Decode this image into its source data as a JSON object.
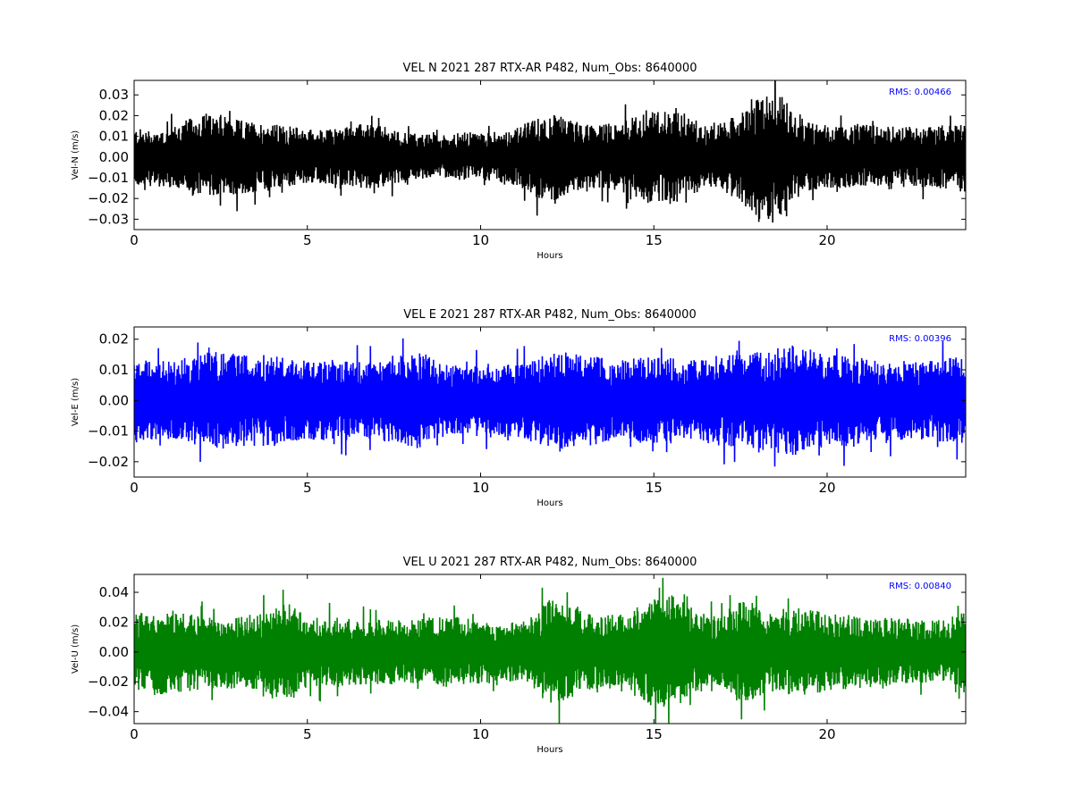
{
  "chart_data": [
    {
      "type": "line",
      "title": "VEL N 2021 287 RTX-AR  P482, Num_Obs: 8640000",
      "xlabel": "Hours",
      "ylabel": "Vel-N (m/s)",
      "xlim": [
        0,
        24
      ],
      "ylim": [
        -0.035,
        0.037
      ],
      "xticks": [
        0,
        5,
        10,
        15,
        20
      ],
      "xtick_labels": [
        "0",
        "5",
        "10",
        "15",
        "20"
      ],
      "yticks": [
        -0.03,
        -0.02,
        -0.01,
        0.0,
        0.01,
        0.02,
        0.03
      ],
      "ytick_labels": [
        "−0.03",
        "−0.02",
        "−0.01",
        "0.00",
        "0.01",
        "0.02",
        "0.03"
      ],
      "annotation": "RMS:  0.00466",
      "color": "#000000",
      "annotation_color": "#0000ff",
      "grid": false,
      "series": [
        {
          "x": [
            0,
            0.5,
            1,
            1.5,
            2,
            2.5,
            3,
            3.5,
            4,
            4.5,
            5,
            5.5,
            6,
            6.5,
            7,
            7.5,
            8,
            8.5,
            9,
            9.5,
            10,
            10.5,
            11,
            11.5,
            12,
            12.5,
            13,
            13.5,
            14,
            14.5,
            15,
            15.5,
            16,
            16.5,
            17,
            17.5,
            18,
            18.5,
            19,
            19.5,
            20,
            20.5,
            21,
            21.5,
            22,
            22.5,
            23,
            23.5,
            24
          ],
          "upper": [
            0.014,
            0.013,
            0.014,
            0.018,
            0.021,
            0.019,
            0.018,
            0.017,
            0.016,
            0.015,
            0.014,
            0.013,
            0.015,
            0.016,
            0.016,
            0.013,
            0.012,
            0.011,
            0.011,
            0.012,
            0.012,
            0.012,
            0.014,
            0.018,
            0.021,
            0.019,
            0.016,
            0.016,
            0.017,
            0.02,
            0.022,
            0.024,
            0.021,
            0.015,
            0.017,
            0.021,
            0.028,
            0.033,
            0.024,
            0.017,
            0.016,
            0.016,
            0.016,
            0.015,
            0.015,
            0.015,
            0.015,
            0.016,
            0.017
          ],
          "lower": [
            -0.014,
            -0.014,
            -0.015,
            -0.018,
            -0.02,
            -0.018,
            -0.019,
            -0.017,
            -0.016,
            -0.014,
            -0.013,
            -0.013,
            -0.014,
            -0.015,
            -0.015,
            -0.013,
            -0.011,
            -0.01,
            -0.01,
            -0.011,
            -0.011,
            -0.012,
            -0.014,
            -0.019,
            -0.022,
            -0.018,
            -0.015,
            -0.015,
            -0.016,
            -0.021,
            -0.022,
            -0.023,
            -0.02,
            -0.014,
            -0.016,
            -0.022,
            -0.03,
            -0.033,
            -0.023,
            -0.016,
            -0.015,
            -0.015,
            -0.015,
            -0.015,
            -0.014,
            -0.014,
            -0.015,
            -0.016,
            -0.017
          ]
        }
      ]
    },
    {
      "type": "line",
      "title": "VEL E 2021 287 RTX-AR  P482, Num_Obs: 8640000",
      "xlabel": "Hours",
      "ylabel": "Vel-E (m/s)",
      "xlim": [
        0,
        24
      ],
      "ylim": [
        -0.025,
        0.024
      ],
      "xticks": [
        0,
        5,
        10,
        15,
        20
      ],
      "xtick_labels": [
        "0",
        "5",
        "10",
        "15",
        "20"
      ],
      "yticks": [
        -0.02,
        -0.01,
        0.0,
        0.01,
        0.02
      ],
      "ytick_labels": [
        "−0.02",
        "−0.01",
        "0.00",
        "0.01",
        "0.02"
      ],
      "annotation": "RMS:  0.00396",
      "color": "#0000ff",
      "annotation_color": "#0000ff",
      "grid": false,
      "series": [
        {
          "x": [
            0,
            0.5,
            1,
            1.5,
            2,
            2.5,
            3,
            3.5,
            4,
            4.5,
            5,
            5.5,
            6,
            6.5,
            7,
            7.5,
            8,
            8.5,
            9,
            9.5,
            10,
            10.5,
            11,
            11.5,
            12,
            12.5,
            13,
            13.5,
            14,
            14.5,
            15,
            15.5,
            16,
            16.5,
            17,
            17.5,
            18,
            18.5,
            19,
            19.5,
            20,
            20.5,
            21,
            21.5,
            22,
            22.5,
            23,
            23.5,
            24
          ],
          "upper": [
            0.014,
            0.013,
            0.013,
            0.014,
            0.016,
            0.016,
            0.015,
            0.015,
            0.015,
            0.014,
            0.013,
            0.013,
            0.013,
            0.013,
            0.013,
            0.014,
            0.016,
            0.015,
            0.012,
            0.011,
            0.012,
            0.012,
            0.012,
            0.013,
            0.016,
            0.016,
            0.015,
            0.014,
            0.013,
            0.014,
            0.014,
            0.014,
            0.013,
            0.014,
            0.015,
            0.015,
            0.016,
            0.017,
            0.018,
            0.017,
            0.015,
            0.015,
            0.014,
            0.013,
            0.013,
            0.013,
            0.013,
            0.014,
            0.014
          ],
          "lower": [
            -0.014,
            -0.013,
            -0.013,
            -0.014,
            -0.016,
            -0.016,
            -0.015,
            -0.015,
            -0.015,
            -0.014,
            -0.013,
            -0.013,
            -0.013,
            -0.013,
            -0.013,
            -0.014,
            -0.016,
            -0.015,
            -0.012,
            -0.011,
            -0.012,
            -0.012,
            -0.012,
            -0.013,
            -0.016,
            -0.016,
            -0.015,
            -0.014,
            -0.013,
            -0.014,
            -0.014,
            -0.014,
            -0.013,
            -0.014,
            -0.015,
            -0.015,
            -0.016,
            -0.017,
            -0.018,
            -0.017,
            -0.015,
            -0.015,
            -0.014,
            -0.013,
            -0.013,
            -0.013,
            -0.013,
            -0.014,
            -0.014
          ]
        }
      ]
    },
    {
      "type": "line",
      "title": "VEL U 2021 287 RTX-AR  P482, Num_Obs: 8640000",
      "xlabel": "Hours",
      "ylabel": "Vel-U (m/s)",
      "xlim": [
        0,
        24
      ],
      "ylim": [
        -0.048,
        0.052
      ],
      "xticks": [
        0,
        5,
        10,
        15,
        20
      ],
      "xtick_labels": [
        "0",
        "5",
        "10",
        "15",
        "20"
      ],
      "yticks": [
        -0.04,
        -0.02,
        0.0,
        0.02,
        0.04
      ],
      "ytick_labels": [
        "−0.04",
        "−0.02",
        "0.00",
        "0.02",
        "0.04"
      ],
      "annotation": "RMS:  0.00840",
      "color": "#008000",
      "annotation_color": "#0000ff",
      "grid": false,
      "series": [
        {
          "x": [
            0,
            0.5,
            1,
            1.5,
            2,
            2.5,
            3,
            3.5,
            4,
            4.5,
            5,
            5.5,
            6,
            6.5,
            7,
            7.5,
            8,
            8.5,
            9,
            9.5,
            10,
            10.5,
            11,
            11.5,
            12,
            12.5,
            13,
            13.5,
            14,
            14.5,
            15,
            15.5,
            16,
            16.5,
            17,
            17.5,
            18,
            18.5,
            19,
            19.5,
            20,
            20.5,
            21,
            21.5,
            22,
            22.5,
            23,
            23.5,
            24
          ],
          "upper": [
            0.026,
            0.029,
            0.028,
            0.027,
            0.025,
            0.024,
            0.026,
            0.025,
            0.028,
            0.034,
            0.024,
            0.023,
            0.023,
            0.022,
            0.022,
            0.022,
            0.022,
            0.023,
            0.025,
            0.023,
            0.021,
            0.02,
            0.02,
            0.024,
            0.036,
            0.033,
            0.026,
            0.024,
            0.026,
            0.03,
            0.036,
            0.039,
            0.031,
            0.025,
            0.023,
            0.036,
            0.03,
            0.026,
            0.029,
            0.03,
            0.026,
            0.025,
            0.024,
            0.023,
            0.023,
            0.022,
            0.022,
            0.021,
            0.028
          ],
          "lower": [
            -0.026,
            -0.029,
            -0.028,
            -0.027,
            -0.025,
            -0.024,
            -0.026,
            -0.025,
            -0.029,
            -0.034,
            -0.024,
            -0.023,
            -0.023,
            -0.022,
            -0.022,
            -0.022,
            -0.022,
            -0.023,
            -0.025,
            -0.023,
            -0.021,
            -0.02,
            -0.02,
            -0.024,
            -0.036,
            -0.033,
            -0.026,
            -0.024,
            -0.026,
            -0.03,
            -0.037,
            -0.04,
            -0.031,
            -0.025,
            -0.023,
            -0.036,
            -0.03,
            -0.026,
            -0.029,
            -0.03,
            -0.026,
            -0.025,
            -0.024,
            -0.023,
            -0.023,
            -0.022,
            -0.022,
            -0.021,
            -0.028
          ]
        }
      ]
    }
  ]
}
